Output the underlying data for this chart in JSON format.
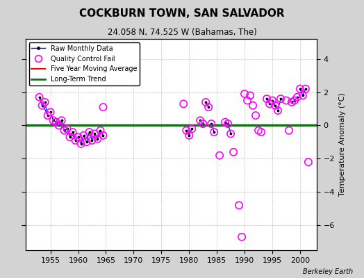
{
  "title": "COCKBURN TOWN, SAN SALVADOR",
  "subtitle": "24.058 N, 74.525 W (Bahamas, The)",
  "ylabel": "Temperature Anomaly (°C)",
  "attribution": "Berkeley Earth",
  "xlim": [
    1950.5,
    2003
  ],
  "ylim": [
    -7.5,
    5.2
  ],
  "yticks": [
    -6,
    -4,
    -2,
    0,
    2,
    4
  ],
  "xticks": [
    1955,
    1960,
    1965,
    1970,
    1975,
    1980,
    1985,
    1990,
    1995,
    2000
  ],
  "bg_color": "#d3d3d3",
  "plot_bg_color": "#ffffff",
  "green_line_y": 0.0,
  "segments": [
    {
      "x": [
        1953.0,
        1953.5
      ],
      "y": [
        1.7,
        1.2
      ]
    },
    {
      "x": [
        1953.5,
        1954.0
      ],
      "y": [
        1.2,
        1.4
      ]
    },
    {
      "x": [
        1954.0,
        1954.5
      ],
      "y": [
        1.4,
        0.6
      ]
    },
    {
      "x": [
        1953.0,
        1954.5
      ],
      "y": [
        1.7,
        0.6
      ]
    },
    {
      "x": [
        1955.0,
        1955.5
      ],
      "y": [
        0.8,
        0.3
      ]
    },
    {
      "x": [
        1955.5,
        1956.0
      ],
      "y": [
        0.3,
        0.2
      ]
    },
    {
      "x": [
        1956.0,
        1956.5
      ],
      "y": [
        0.2,
        0.0
      ]
    },
    {
      "x": [
        1956.5,
        1957.0
      ],
      "y": [
        0.0,
        0.3
      ]
    },
    {
      "x": [
        1957.0,
        1957.5
      ],
      "y": [
        0.3,
        -0.3
      ]
    },
    {
      "x": [
        1957.5,
        1958.0
      ],
      "y": [
        -0.3,
        -0.2
      ]
    },
    {
      "x": [
        1958.0,
        1958.5
      ],
      "y": [
        -0.2,
        -0.7
      ]
    },
    {
      "x": [
        1958.5,
        1959.0
      ],
      "y": [
        -0.7,
        -0.4
      ]
    },
    {
      "x": [
        1959.0,
        1959.5
      ],
      "y": [
        -0.4,
        -0.9
      ]
    },
    {
      "x": [
        1959.5,
        1960.0
      ],
      "y": [
        -0.9,
        -0.7
      ]
    },
    {
      "x": [
        1960.0,
        1960.5
      ],
      "y": [
        -0.7,
        -1.1
      ]
    },
    {
      "x": [
        1960.5,
        1961.0
      ],
      "y": [
        -1.1,
        -0.6
      ]
    },
    {
      "x": [
        1961.0,
        1961.5
      ],
      "y": [
        -0.6,
        -1.0
      ]
    },
    {
      "x": [
        1961.5,
        1962.0
      ],
      "y": [
        -1.0,
        -0.4
      ]
    },
    {
      "x": [
        1962.0,
        1962.5
      ],
      "y": [
        -0.4,
        -0.9
      ]
    },
    {
      "x": [
        1962.5,
        1963.0
      ],
      "y": [
        -0.9,
        -0.5
      ]
    },
    {
      "x": [
        1963.0,
        1963.5
      ],
      "y": [
        -0.5,
        -0.8
      ]
    },
    {
      "x": [
        1963.5,
        1964.0
      ],
      "y": [
        -0.8,
        -0.3
      ]
    },
    {
      "x": [
        1964.0,
        1964.5
      ],
      "y": [
        -0.3,
        -0.6
      ]
    },
    {
      "x": [
        1979.5,
        1980.0
      ],
      "y": [
        -0.3,
        -0.6
      ]
    },
    {
      "x": [
        1980.0,
        1980.5
      ],
      "y": [
        -0.6,
        -0.2
      ]
    },
    {
      "x": [
        1982.0,
        1982.5
      ],
      "y": [
        0.3,
        0.1
      ]
    },
    {
      "x": [
        1983.0,
        1983.5
      ],
      "y": [
        1.4,
        1.1
      ]
    },
    {
      "x": [
        1984.0,
        1984.5
      ],
      "y": [
        0.1,
        -0.4
      ]
    },
    {
      "x": [
        1986.5,
        1987.0
      ],
      "y": [
        0.2,
        0.1
      ]
    },
    {
      "x": [
        1987.0,
        1987.5
      ],
      "y": [
        0.1,
        -0.5
      ]
    },
    {
      "x": [
        1994.0,
        1994.5
      ],
      "y": [
        1.6,
        1.3
      ]
    },
    {
      "x": [
        1995.0,
        1995.5
      ],
      "y": [
        1.5,
        1.2
      ]
    },
    {
      "x": [
        1996.0,
        1996.5
      ],
      "y": [
        0.9,
        1.6
      ]
    },
    {
      "x": [
        1998.5,
        1999.0
      ],
      "y": [
        1.4,
        1.5
      ]
    },
    {
      "x": [
        1999.0,
        1999.5
      ],
      "y": [
        1.5,
        1.7
      ]
    },
    {
      "x": [
        2000.0,
        2000.5
      ],
      "y": [
        2.2,
        1.8
      ]
    },
    {
      "x": [
        2000.5,
        2001.0
      ],
      "y": [
        1.8,
        2.2
      ]
    }
  ],
  "dots": [
    [
      1953.0,
      1.7
    ],
    [
      1953.5,
      1.2
    ],
    [
      1954.0,
      1.4
    ],
    [
      1954.5,
      0.6
    ],
    [
      1955.0,
      0.8
    ],
    [
      1955.5,
      0.3
    ],
    [
      1956.0,
      0.2
    ],
    [
      1956.5,
      0.0
    ],
    [
      1957.0,
      0.3
    ],
    [
      1957.5,
      -0.3
    ],
    [
      1958.0,
      -0.2
    ],
    [
      1958.5,
      -0.7
    ],
    [
      1959.0,
      -0.4
    ],
    [
      1959.5,
      -0.9
    ],
    [
      1960.0,
      -0.7
    ],
    [
      1960.5,
      -1.1
    ],
    [
      1961.0,
      -0.6
    ],
    [
      1961.5,
      -1.0
    ],
    [
      1962.0,
      -0.4
    ],
    [
      1962.5,
      -0.9
    ],
    [
      1963.0,
      -0.5
    ],
    [
      1963.5,
      -0.8
    ],
    [
      1964.0,
      -0.3
    ],
    [
      1964.5,
      -0.6
    ],
    [
      1979.5,
      -0.3
    ],
    [
      1980.0,
      -0.6
    ],
    [
      1980.5,
      -0.2
    ],
    [
      1982.0,
      0.3
    ],
    [
      1982.5,
      0.1
    ],
    [
      1983.0,
      1.4
    ],
    [
      1983.5,
      1.1
    ],
    [
      1984.0,
      0.1
    ],
    [
      1984.5,
      -0.4
    ],
    [
      1986.5,
      0.2
    ],
    [
      1987.0,
      0.1
    ],
    [
      1987.5,
      -0.5
    ],
    [
      1994.0,
      1.6
    ],
    [
      1994.5,
      1.3
    ],
    [
      1995.0,
      1.5
    ],
    [
      1995.5,
      1.2
    ],
    [
      1996.0,
      0.9
    ],
    [
      1996.5,
      1.6
    ],
    [
      1998.5,
      1.4
    ],
    [
      1999.0,
      1.5
    ],
    [
      1999.5,
      1.7
    ],
    [
      2000.0,
      2.2
    ],
    [
      2000.5,
      1.8
    ],
    [
      2001.0,
      2.2
    ]
  ],
  "qc_circles": [
    [
      1953.0,
      1.7
    ],
    [
      1953.5,
      1.2
    ],
    [
      1954.0,
      1.4
    ],
    [
      1954.5,
      0.6
    ],
    [
      1955.0,
      0.8
    ],
    [
      1955.5,
      0.3
    ],
    [
      1956.0,
      0.2
    ],
    [
      1956.5,
      0.0
    ],
    [
      1957.0,
      0.3
    ],
    [
      1957.5,
      -0.3
    ],
    [
      1958.0,
      -0.2
    ],
    [
      1958.5,
      -0.7
    ],
    [
      1959.0,
      -0.4
    ],
    [
      1959.5,
      -0.9
    ],
    [
      1960.0,
      -0.7
    ],
    [
      1960.5,
      -1.1
    ],
    [
      1961.0,
      -0.6
    ],
    [
      1961.5,
      -1.0
    ],
    [
      1962.0,
      -0.4
    ],
    [
      1962.5,
      -0.9
    ],
    [
      1963.0,
      -0.5
    ],
    [
      1963.5,
      -0.8
    ],
    [
      1964.0,
      -0.3
    ],
    [
      1964.5,
      -0.6
    ],
    [
      1964.5,
      1.1
    ],
    [
      1979.0,
      1.3
    ],
    [
      1979.5,
      -0.3
    ],
    [
      1980.0,
      -0.6
    ],
    [
      1980.5,
      -0.2
    ],
    [
      1982.0,
      0.3
    ],
    [
      1982.5,
      0.1
    ],
    [
      1983.0,
      1.4
    ],
    [
      1983.5,
      1.1
    ],
    [
      1984.0,
      0.1
    ],
    [
      1984.5,
      -0.4
    ],
    [
      1985.5,
      -1.8
    ],
    [
      1986.5,
      0.2
    ],
    [
      1987.0,
      0.1
    ],
    [
      1987.5,
      -0.5
    ],
    [
      1988.0,
      -1.6
    ],
    [
      1989.0,
      -4.8
    ],
    [
      1989.5,
      -6.7
    ],
    [
      1990.0,
      1.9
    ],
    [
      1990.5,
      1.5
    ],
    [
      1991.0,
      1.8
    ],
    [
      1991.5,
      1.2
    ],
    [
      1992.0,
      0.6
    ],
    [
      1992.5,
      -0.3
    ],
    [
      1993.0,
      -0.4
    ],
    [
      1994.0,
      1.6
    ],
    [
      1994.5,
      1.3
    ],
    [
      1995.0,
      1.5
    ],
    [
      1995.5,
      1.2
    ],
    [
      1996.0,
      0.9
    ],
    [
      1996.5,
      1.6
    ],
    [
      1997.5,
      1.5
    ],
    [
      1998.0,
      -0.3
    ],
    [
      1998.5,
      1.4
    ],
    [
      1999.0,
      1.5
    ],
    [
      1999.5,
      1.7
    ],
    [
      2000.0,
      2.2
    ],
    [
      2000.5,
      1.8
    ],
    [
      2001.0,
      2.2
    ],
    [
      2001.5,
      -2.2
    ]
  ]
}
